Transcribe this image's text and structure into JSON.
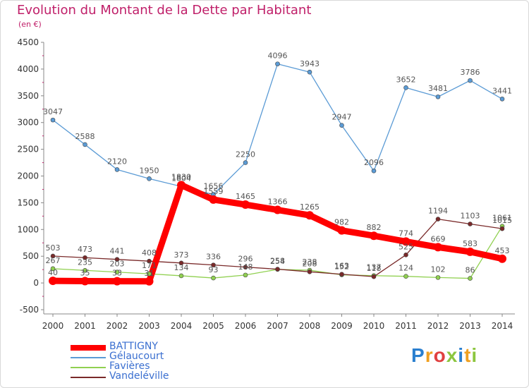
{
  "header": {
    "title": "Evolution du Montant de la Dette par Habitant",
    "subtitle": "(en €)"
  },
  "logo": {
    "text": "Proxiti",
    "letters": [
      {
        "ch": "P",
        "color": "#2a7fcf"
      },
      {
        "ch": "r",
        "color": "#f0a020"
      },
      {
        "ch": "o",
        "color": "#e04040"
      },
      {
        "ch": "x",
        "color": "#8cc63f"
      },
      {
        "ch": "i",
        "color": "#2a7fcf"
      },
      {
        "ch": "t",
        "color": "#f0a020"
      },
      {
        "ch": "i",
        "color": "#8cc63f"
      }
    ]
  },
  "chart_data": {
    "type": "line",
    "x": [
      "2000",
      "2001",
      "2002",
      "2003",
      "2004",
      "2005",
      "2006",
      "2007",
      "2008",
      "2009",
      "2010",
      "2011",
      "2012",
      "2013",
      "2014"
    ],
    "ylim": [
      -500,
      4500
    ],
    "yticks": [
      -500,
      0,
      500,
      1000,
      1500,
      2000,
      2500,
      3000,
      3500,
      4000,
      4500
    ],
    "grid": false,
    "legend_position": "bottom-left",
    "series": [
      {
        "name": "BATTIGNY",
        "color": "#ff0000",
        "values": [
          40,
          35,
          33,
          31,
          1830,
          1559,
          1465,
          1366,
          1265,
          982,
          882,
          774,
          669,
          583,
          453
        ],
        "labels": [
          "40",
          "35",
          "33",
          "31",
          "1830",
          "1559",
          "1465",
          "1366",
          "1265",
          "982",
          "882",
          "774",
          "669",
          "583",
          "453"
        ]
      },
      {
        "name": "Gélaucourt",
        "color": "#5b9bd5",
        "values": [
          3047,
          2588,
          2120,
          1950,
          1804,
          1656,
          2250,
          4096,
          3943,
          2947,
          2096,
          3652,
          3481,
          3786,
          3441
        ],
        "labels": [
          "3047",
          "2588",
          "2120",
          "1950",
          "1804",
          "1656",
          "2250",
          "4096",
          "3943",
          "2947",
          "2096",
          "3652",
          "3481",
          "3786",
          "3441"
        ]
      },
      {
        "name": "Favières",
        "color": "#90d050",
        "values": [
          267,
          235,
          203,
          171,
          134,
          93,
          148,
          254,
          238,
          152,
          137,
          124,
          102,
          86,
          1061
        ],
        "labels": [
          "267",
          "235",
          "203",
          "171",
          "134",
          "93",
          "148",
          "254",
          "238",
          "152",
          "137",
          "124",
          "102",
          "86",
          "1061"
        ]
      },
      {
        "name": "Vandeléville",
        "color": "#7a2a2a",
        "values": [
          503,
          473,
          441,
          408,
          373,
          336,
          296,
          258,
          208,
          163,
          118,
          525,
          1194,
          1103,
          1015
        ],
        "labels": [
          "503",
          "473",
          "441",
          "408",
          "373",
          "336",
          "296",
          "258",
          "208",
          "163",
          "118",
          "525",
          "1194",
          "1103",
          "1015"
        ]
      }
    ]
  }
}
